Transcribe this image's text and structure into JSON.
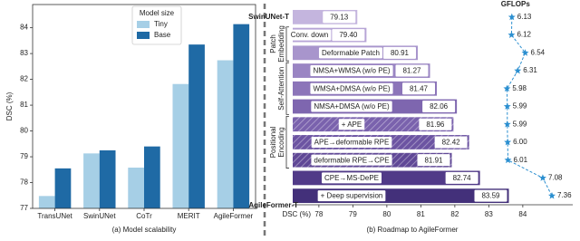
{
  "chart_data": [
    {
      "type": "bar",
      "caption": "(a) Model scalability",
      "ylabel": "DSC (%)",
      "categories": [
        "TransUNet",
        "SwinUNet",
        "CoTr",
        "MERIT",
        "AgileFormer"
      ],
      "series": [
        {
          "name": "Tiny",
          "color": "#a6cfe6",
          "values": [
            77.48,
            79.13,
            78.58,
            81.82,
            82.74
          ]
        },
        {
          "name": "Base",
          "color": "#1f6aa5",
          "values": [
            78.55,
            79.25,
            79.4,
            83.35,
            84.14
          ]
        }
      ],
      "ylim": [
        77,
        84.9
      ],
      "yticks": [
        77,
        78,
        79,
        80,
        81,
        82,
        83,
        84
      ],
      "legend_title": "Model size",
      "legend": "upper center"
    },
    {
      "type": "barh",
      "caption": "(b) Roadmap to AgileFormer",
      "xlabel": "DSC (%)",
      "categories": [
        "SwinUNet-T",
        "Conv. down",
        "Deformable Patch",
        "NMSA+WMSA (w/o PE)",
        "WMSA+DMSA (w/o PE)",
        "NMSA+DMSA (w/o PE)",
        "+ APE",
        "APE→deformable RPE",
        "deformable RPE→CPE",
        "CPE→MS-DePE",
        "+ Deep supervision"
      ],
      "values": [
        79.13,
        79.4,
        80.91,
        81.27,
        81.47,
        82.06,
        81.96,
        82.42,
        81.91,
        82.74,
        83.59
      ],
      "value_labels": [
        "79.13",
        "79.40",
        "80.91",
        "81.27",
        "81.47",
        "82.06",
        "81.96",
        "82.42",
        "81.91",
        "82.74",
        "83.59"
      ],
      "colors": [
        "#c4b5de",
        "#b7a5d6",
        "#a895cc",
        "#9a85c3",
        "#8c75b9",
        "#7e66af",
        "#7a62ad",
        "#6c54a2",
        "#604896",
        "#513a88",
        "#43307a"
      ],
      "hatched": [
        false,
        false,
        false,
        false,
        false,
        false,
        true,
        true,
        true,
        false,
        false
      ],
      "xlim": [
        77.23,
        85.47
      ],
      "xticks": [
        78,
        79,
        80,
        81,
        82,
        83,
        84
      ],
      "groups": [
        {
          "lines": [
            "Patch",
            "Embedding"
          ],
          "first": 1,
          "last": 2
        },
        {
          "lines": [
            "Self-Attention"
          ],
          "first": 3,
          "last": 5
        },
        {
          "lines": [
            "Positional",
            "Encoding"
          ],
          "first": 6,
          "last": 8
        }
      ],
      "annotation": "AgileFormer-T",
      "gflops": {
        "name": "GFLOPs",
        "color": "#2b8fd0",
        "values": [
          6.13,
          6.12,
          6.54,
          6.31,
          5.98,
          5.99,
          5.99,
          6.0,
          6.01,
          7.08,
          7.36
        ],
        "value_labels": [
          "6.13",
          "6.12",
          "6.54",
          "6.31",
          "5.98",
          "5.99",
          "5.99",
          "6.00",
          "6.01",
          "7.08",
          "7.36"
        ],
        "x2lim": [
          -0.6,
          8.0
        ]
      }
    }
  ]
}
